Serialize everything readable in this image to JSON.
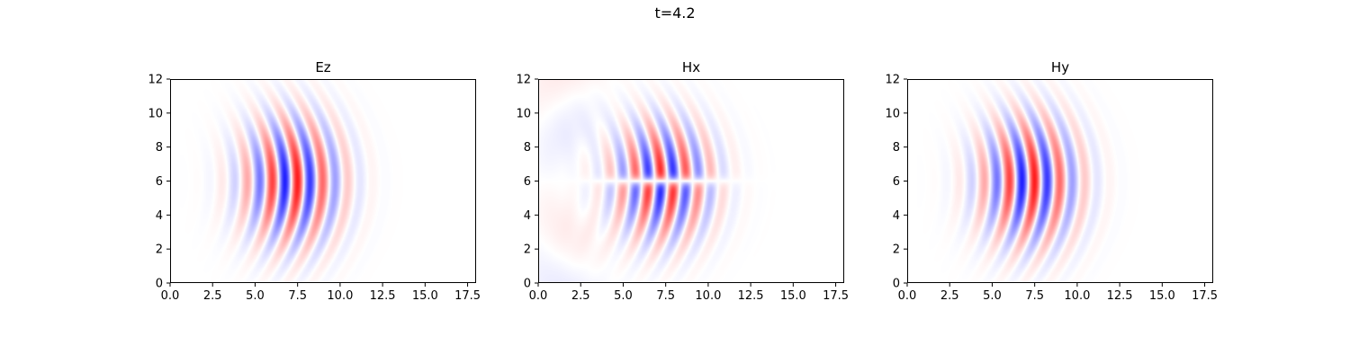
{
  "figure": {
    "suptitle": "t=4.2"
  },
  "colors": {
    "positive": "#ff0000",
    "negative": "#0000ff",
    "zero": "#ffffff",
    "axes": "#000000"
  },
  "chart_data": [
    {
      "type": "heatmap",
      "title": "Ez",
      "xlabel": "",
      "ylabel": "",
      "xlim": [
        0,
        18
      ],
      "ylim": [
        0,
        12
      ],
      "xticks": [
        "0.0",
        "2.5",
        "5.0",
        "7.5",
        "10.0",
        "12.5",
        "15.0",
        "17.5"
      ],
      "yticks": [
        "0",
        "2",
        "4",
        "6",
        "8",
        "10",
        "12"
      ],
      "colormap": "bwr",
      "field": {
        "wavelength": 1.5,
        "packet_center_x": 7.2,
        "packet_width_x": 1.9,
        "beam_center_y": 6.0,
        "beam_width_y": 2.4,
        "amplitude": 0.9,
        "pattern": "symmetric"
      }
    },
    {
      "type": "heatmap",
      "title": "Hx",
      "xlabel": "",
      "ylabel": "",
      "xlim": [
        0,
        18
      ],
      "ylim": [
        0,
        12
      ],
      "xticks": [
        "0.0",
        "2.5",
        "5.0",
        "7.5",
        "10.0",
        "12.5",
        "15.0",
        "17.5"
      ],
      "yticks": [
        "0",
        "2",
        "4",
        "6",
        "8",
        "10",
        "12"
      ],
      "colormap": "bwr",
      "field": {
        "wavelength": 1.5,
        "packet_center_x": 7.3,
        "packet_width_x": 1.9,
        "beam_center_y": 6.0,
        "beam_width_y": 2.2,
        "amplitude": 0.9,
        "pattern": "antisymmetric"
      }
    },
    {
      "type": "heatmap",
      "title": "Hy",
      "xlabel": "",
      "ylabel": "",
      "xlim": [
        0,
        18
      ],
      "ylim": [
        0,
        12
      ],
      "xticks": [
        "0.0",
        "2.5",
        "5.0",
        "7.5",
        "10.0",
        "12.5",
        "15.0",
        "17.5"
      ],
      "yticks": [
        "0",
        "2",
        "4",
        "6",
        "8",
        "10",
        "12"
      ],
      "colormap": "bwr",
      "field": {
        "wavelength": 1.5,
        "packet_center_x": 7.2,
        "packet_width_x": 1.9,
        "beam_center_y": 6.0,
        "beam_width_y": 2.4,
        "amplitude": 0.9,
        "pattern": "symmetric"
      }
    }
  ]
}
